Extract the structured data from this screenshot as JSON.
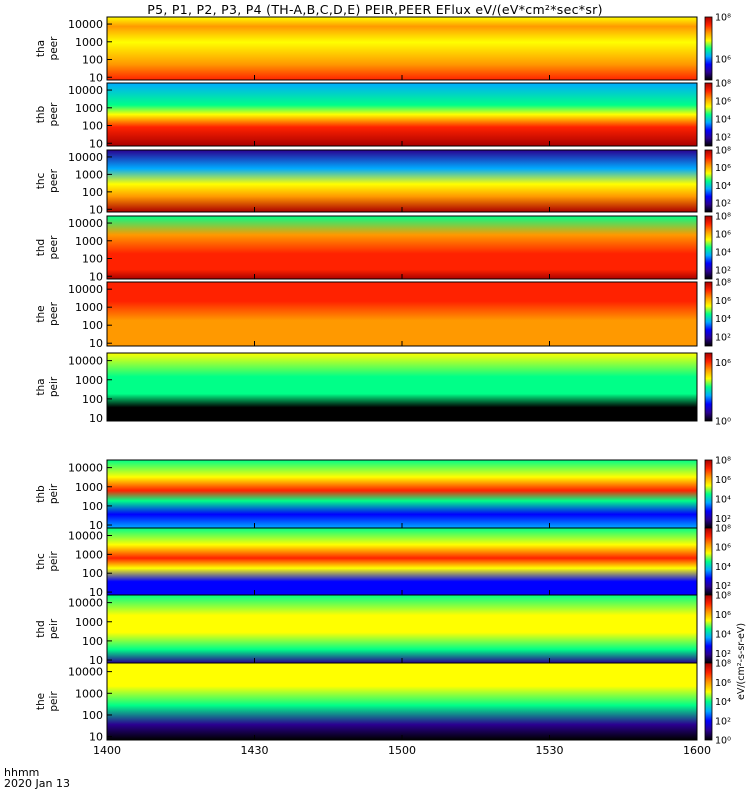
{
  "title": "P5, P1, P2, P3, P4 (TH-A,B,C,D,E) PEIR,PEER EFlux eV/(eV*cm²*sec*sr)",
  "footer": {
    "unit_label": "hhmm",
    "date": "2020 Jan 13"
  },
  "colorbar_label": "eV/(cm²-s-sr-eV)",
  "colormap": [
    "#000000",
    "#2a0090",
    "#0000ff",
    "#00aaff",
    "#00ff88",
    "#ffff00",
    "#ff9900",
    "#ff2200",
    "#aa0000"
  ],
  "chart_data": {
    "type": "heatmap",
    "x_ticks": [
      "1400",
      "1430",
      "1500",
      "1530",
      "1600"
    ],
    "xlim": [
      "14:00",
      "16:00"
    ],
    "y_scale": "log",
    "y_ticks": [
      "10",
      "100",
      "1000",
      "10000"
    ],
    "panels": [
      {
        "probe": "tha",
        "product": "peer",
        "ylim": [
          7,
          25000
        ],
        "cb_ticks": [
          "10⁶",
          "10⁸"
        ],
        "cb_range": [
          5,
          8
        ]
      },
      {
        "probe": "thb",
        "product": "peer",
        "ylim": [
          7,
          25000
        ],
        "cb_ticks": [
          "10²",
          "10⁴",
          "10⁶",
          "10⁸"
        ],
        "cb_range": [
          1,
          8
        ]
      },
      {
        "probe": "thc",
        "product": "peer",
        "ylim": [
          7,
          25000
        ],
        "cb_ticks": [
          "10²",
          "10⁴",
          "10⁶",
          "10⁸"
        ],
        "cb_range": [
          1,
          8
        ]
      },
      {
        "probe": "thd",
        "product": "peer",
        "ylim": [
          7,
          25000
        ],
        "cb_ticks": [
          "10²",
          "10⁴",
          "10⁶",
          "10⁸"
        ],
        "cb_range": [
          1,
          8
        ]
      },
      {
        "probe": "the",
        "product": "peer",
        "ylim": [
          7,
          25000
        ],
        "cb_ticks": [
          "10²",
          "10⁴",
          "10⁶",
          "10⁸"
        ],
        "cb_range": [
          1,
          8
        ]
      },
      {
        "probe": "tha",
        "product": "peir",
        "ylim": [
          7,
          25000
        ],
        "cb_ticks": [
          "10⁰",
          "10⁶"
        ],
        "cb_range": [
          0,
          7
        ]
      },
      {
        "probe": "thb",
        "product": "peir",
        "ylim": [
          7,
          25000
        ],
        "cb_ticks": [
          "10²",
          "10⁴",
          "10⁶",
          "10⁸"
        ],
        "cb_range": [
          1,
          8
        ]
      },
      {
        "probe": "thc",
        "product": "peir",
        "ylim": [
          7,
          25000
        ],
        "cb_ticks": [
          "10²",
          "10⁴",
          "10⁶",
          "10⁸"
        ],
        "cb_range": [
          1,
          8
        ]
      },
      {
        "probe": "thd",
        "product": "peir",
        "ylim": [
          7,
          25000
        ],
        "cb_ticks": [
          "10²",
          "10⁴",
          "10⁶",
          "10⁸"
        ],
        "cb_range": [
          1,
          8
        ]
      },
      {
        "probe": "the",
        "product": "peir",
        "ylim": [
          7,
          25000
        ],
        "cb_ticks": [
          "10⁰",
          "10²",
          "10⁴",
          "10⁶",
          "10⁸"
        ],
        "cb_range": [
          0,
          8
        ]
      }
    ]
  }
}
